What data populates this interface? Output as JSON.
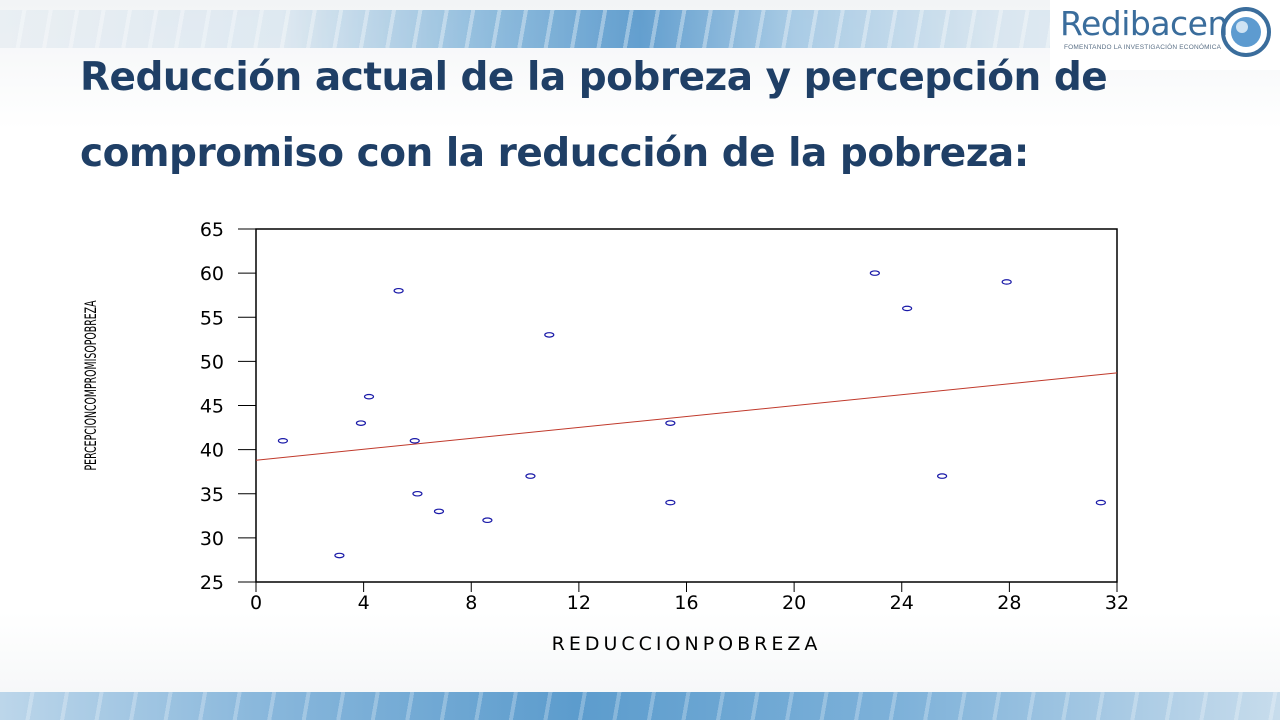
{
  "brand": {
    "name": "Redibacen",
    "tagline": "FOMENTANDO LA INVESTIGACIÓN ECONÓMICA",
    "accent_color": "#3a6d9c"
  },
  "slide": {
    "title": "Reducción actual de la pobreza y percepción de compromiso con la reducción de la pobreza:",
    "title_color": "#1f3f66"
  },
  "chart_data": {
    "type": "scatter",
    "xlabel": "REDUCCIONPOBREZA",
    "ylabel": "PERCEPCIONCOMPROMISOPOBREZA",
    "xlim": [
      0,
      32
    ],
    "ylim": [
      25,
      65
    ],
    "xticks": [
      0,
      4,
      8,
      12,
      16,
      20,
      24,
      28,
      32
    ],
    "yticks": [
      25,
      30,
      35,
      40,
      45,
      50,
      55,
      60,
      65
    ],
    "grid": false,
    "point_color": "#1a1aa8",
    "trend_color": "#c0392b",
    "points": [
      {
        "x": 1.0,
        "y": 41
      },
      {
        "x": 3.1,
        "y": 28
      },
      {
        "x": 3.9,
        "y": 43
      },
      {
        "x": 4.2,
        "y": 46
      },
      {
        "x": 5.3,
        "y": 58
      },
      {
        "x": 5.9,
        "y": 41
      },
      {
        "x": 6.0,
        "y": 35
      },
      {
        "x": 6.8,
        "y": 33
      },
      {
        "x": 8.6,
        "y": 32
      },
      {
        "x": 10.2,
        "y": 37
      },
      {
        "x": 10.9,
        "y": 53
      },
      {
        "x": 15.4,
        "y": 43
      },
      {
        "x": 15.4,
        "y": 34
      },
      {
        "x": 23.0,
        "y": 60
      },
      {
        "x": 24.2,
        "y": 56
      },
      {
        "x": 25.5,
        "y": 37
      },
      {
        "x": 27.9,
        "y": 59
      },
      {
        "x": 31.4,
        "y": 34
      }
    ],
    "trend_line": [
      {
        "x": 0,
        "y": 38.8
      },
      {
        "x": 32,
        "y": 48.7
      }
    ]
  }
}
